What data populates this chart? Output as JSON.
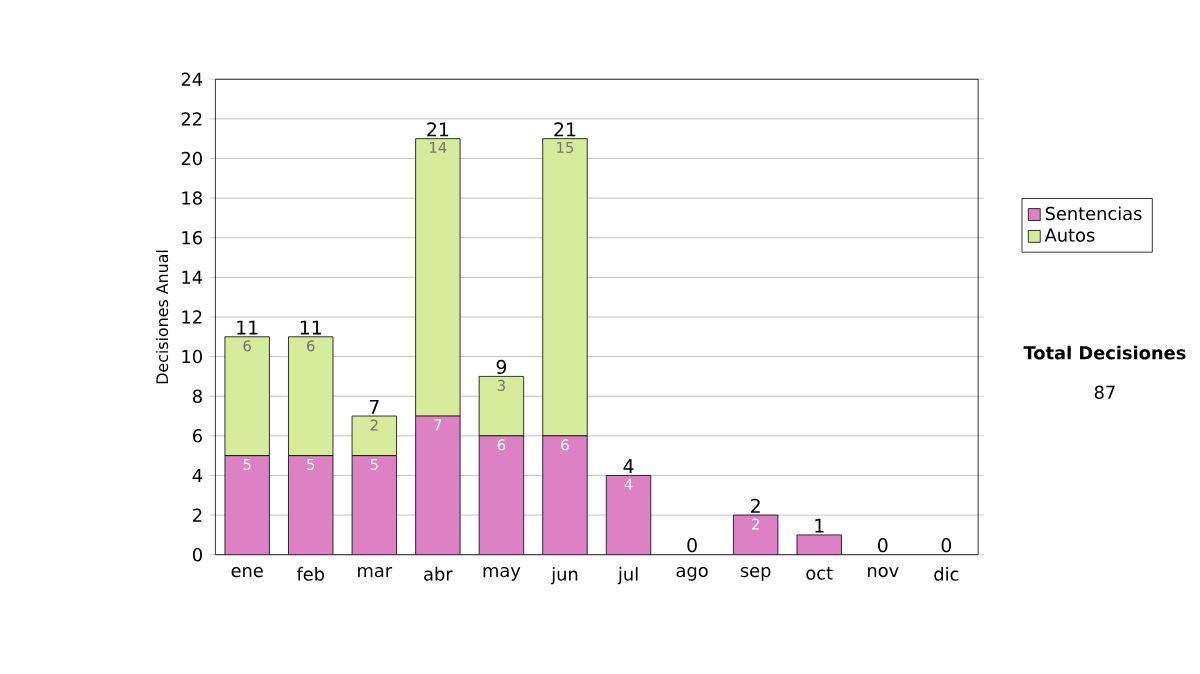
{
  "chart_data": {
    "type": "bar",
    "stacked": true,
    "ylabel": "Decisiones Anual",
    "categories": [
      "ene",
      "feb",
      "mar",
      "abr",
      "may",
      "jun",
      "jul",
      "ago",
      "sep",
      "oct",
      "nov",
      "dic"
    ],
    "series": [
      {
        "name": "Sentencias",
        "color": "#dd80c4",
        "values": [
          5,
          5,
          5,
          7,
          6,
          6,
          4,
          0,
          2,
          1,
          0,
          0
        ],
        "value_labels": [
          "5",
          "5",
          "5",
          "7",
          "6",
          "6",
          "4",
          null,
          "2",
          null,
          null,
          null
        ]
      },
      {
        "name": "Autos",
        "color": "#d6ec9a",
        "values": [
          6,
          6,
          2,
          14,
          3,
          15,
          0,
          0,
          0,
          0,
          0,
          0
        ],
        "value_labels": [
          "6",
          "6",
          "2",
          "14",
          "3",
          "15",
          null,
          null,
          null,
          null,
          null,
          null
        ]
      }
    ],
    "totals": [
      "11",
      "11",
      "7",
      "21",
      "9",
      "21",
      "4",
      "0",
      "2",
      "1",
      "0",
      "0"
    ],
    "ylim": [
      0,
      24
    ],
    "yticks": [
      0,
      2,
      4,
      6,
      8,
      10,
      12,
      14,
      16,
      18,
      20,
      22,
      24
    ],
    "grid": "y",
    "legend": "right",
    "annotations": [
      "Total Decisiones",
      "87"
    ]
  }
}
